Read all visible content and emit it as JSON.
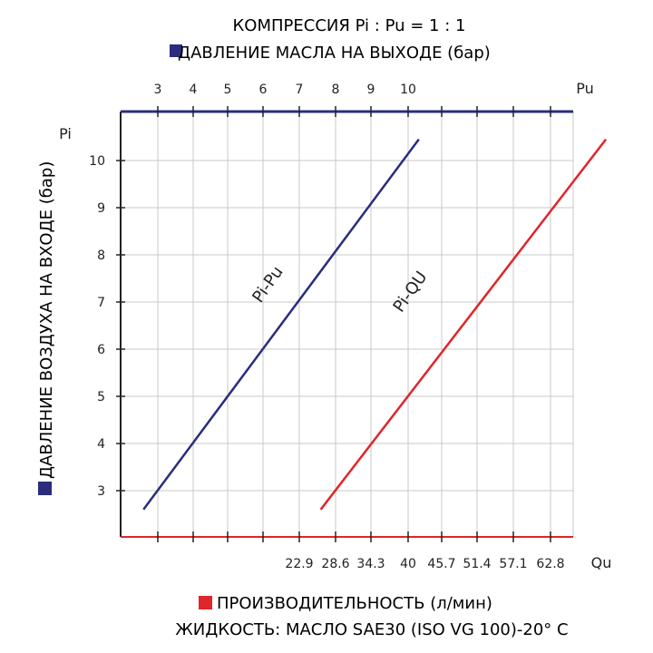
{
  "chart_data": {
    "type": "line",
    "title": "КОМПРЕССИЯ Pi : Pu = 1 : 1",
    "top_axis_legend": "ДАВЛЕНИЕ МАСЛА НА ВЫХОДЕ (бар)",
    "left_axis_legend": "ДАВЛЕНИЕ ВОЗДУХА НА ВХОДЕ (бар)",
    "bottom_axis_legend": "ПРОИЗВОДИТЕЛЬНОСТЬ (л/мин)",
    "footer_note": "ЖИДКОСТЬ:  МАСЛО SAE30 (ISO VG 100)-20° C",
    "top_axis": {
      "name": "Pu",
      "ticks": [
        "3",
        "4",
        "5",
        "6",
        "7",
        "8",
        "9",
        "10"
      ]
    },
    "left_axis": {
      "name": "Pi",
      "ticks": [
        "3",
        "4",
        "5",
        "6",
        "7",
        "8",
        "9",
        "10"
      ],
      "ylim": [
        2.1,
        11
      ]
    },
    "bottom_axis": {
      "name": "Qu",
      "ticks": [
        "22.9",
        "28.6",
        "34.3",
        "40",
        "45.7",
        "51.4",
        "57.1",
        "62.8"
      ]
    },
    "grid": true,
    "colors": {
      "pu": "#2b2d7c",
      "qu": "#e0252b",
      "grid": "#c8c8c8"
    },
    "series": [
      {
        "name": "Pi-Pu",
        "axis": "top",
        "points": [
          [
            2.6,
            2.6
          ],
          [
            10.3,
            10.45
          ]
        ],
        "color": "#2b2d7c"
      },
      {
        "name": "Pi-QU",
        "axis": "bottom",
        "points": [
          [
            26.3,
            2.6
          ],
          [
            71.6,
            10.45
          ]
        ],
        "color": "#e0252b"
      }
    ]
  }
}
